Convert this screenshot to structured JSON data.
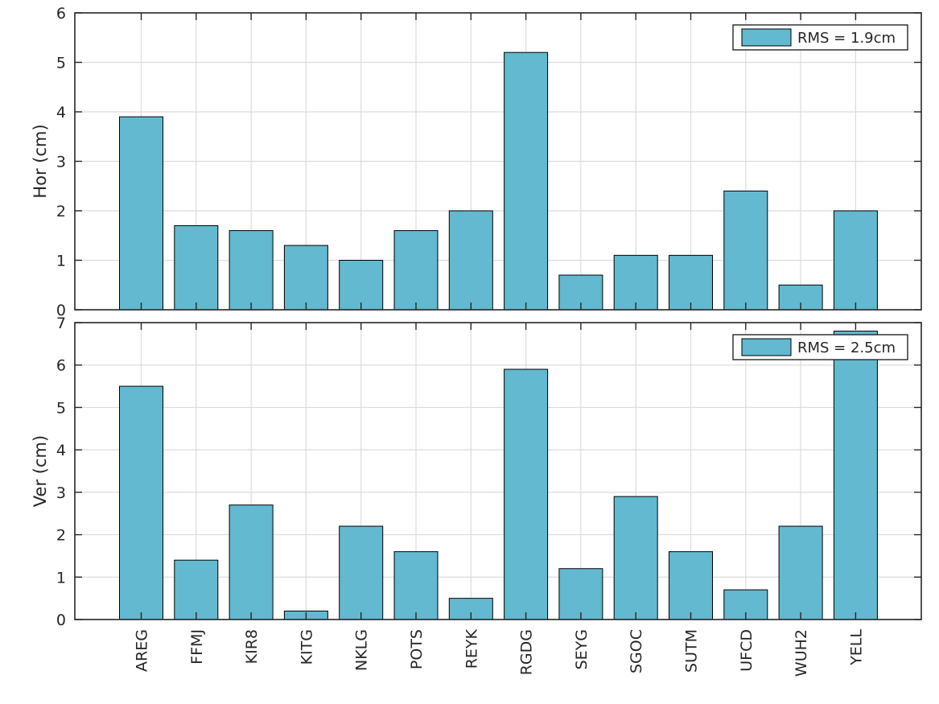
{
  "colors": {
    "bar_fill": "#62b9d0",
    "bar_edge": "#000000",
    "axis": "#262626",
    "grid": "#dcdcdc",
    "background": "#ffffff"
  },
  "chart_data": [
    {
      "type": "bar",
      "title": "",
      "xlabel": "",
      "ylabel": "Hor (cm)",
      "ylim": [
        0,
        6
      ],
      "yticks": [
        0,
        1,
        2,
        3,
        4,
        5,
        6
      ],
      "grid": true,
      "legend": {
        "position": "top-right",
        "entries": [
          "RMS = 1.9cm"
        ]
      },
      "categories": [
        "AREG",
        "FFMJ",
        "KIR8",
        "KITG",
        "NKLG",
        "POTS",
        "REYK",
        "RGDG",
        "SEYG",
        "SGOC",
        "SUTM",
        "UFCD",
        "WUH2",
        "YELL"
      ],
      "series": [
        {
          "name": "RMS = 1.9cm",
          "values": [
            3.9,
            1.7,
            1.6,
            1.3,
            1.0,
            1.6,
            2.0,
            5.2,
            0.7,
            1.1,
            1.1,
            2.4,
            0.5,
            2.0
          ]
        }
      ]
    },
    {
      "type": "bar",
      "title": "",
      "xlabel": "",
      "ylabel": "Ver (cm)",
      "ylim": [
        0,
        7
      ],
      "yticks": [
        0,
        1,
        2,
        3,
        4,
        5,
        6,
        7
      ],
      "grid": true,
      "legend": {
        "position": "top-right",
        "entries": [
          "RMS = 2.5cm"
        ]
      },
      "categories": [
        "AREG",
        "FFMJ",
        "KIR8",
        "KITG",
        "NKLG",
        "POTS",
        "REYK",
        "RGDG",
        "SEYG",
        "SGOC",
        "SUTM",
        "UFCD",
        "WUH2",
        "YELL"
      ],
      "series": [
        {
          "name": "RMS = 2.5cm",
          "values": [
            5.5,
            1.4,
            2.7,
            0.2,
            2.2,
            1.6,
            0.5,
            5.9,
            1.2,
            2.9,
            1.6,
            0.7,
            2.2,
            6.8
          ]
        }
      ]
    }
  ]
}
